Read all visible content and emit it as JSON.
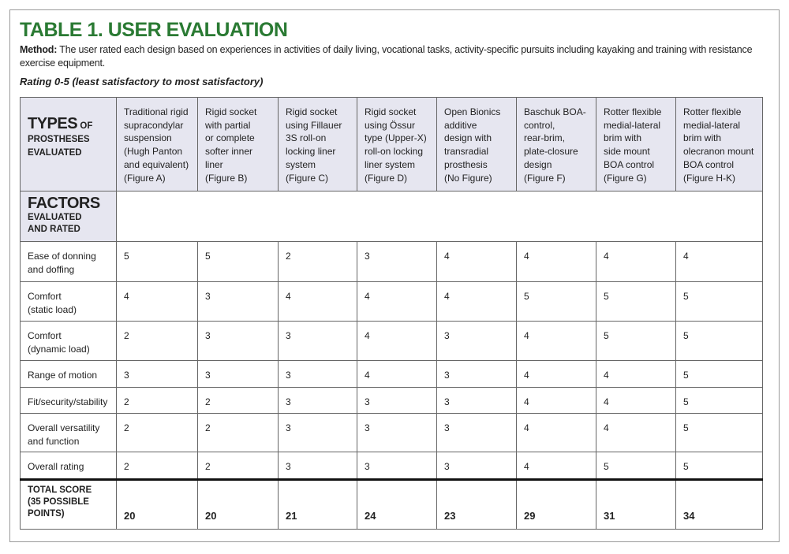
{
  "title": "TABLE 1. USER EVALUATION",
  "method": {
    "label": "Method:",
    "text": "The user rated each design based on experiences in activities of daily living, vocational tasks, activity-specific pursuits including kayaking and training with resistance exercise equipment."
  },
  "rating_note": "Rating 0-5 (least satisfactory to most satisfactory)",
  "table": {
    "corner": {
      "lead": "TYPES",
      "rest": "OF PROSTHESES EVALUATED"
    },
    "factors_heading": {
      "lead": "FACTORS",
      "rest": "EVALUATED AND RATED"
    },
    "columns": [
      [
        "Traditional rigid",
        "supracondylar",
        "suspension",
        "(Hugh Panton",
        "and equivalent)",
        "(Figure A)"
      ],
      [
        "Rigid socket",
        "with partial",
        "or complete",
        "softer inner",
        "liner",
        "(Figure B)"
      ],
      [
        "Rigid socket",
        "using Fillauer",
        "3S roll-on",
        "locking liner",
        "system",
        "(Figure C)"
      ],
      [
        "Rigid socket",
        "using Össur",
        "type (Upper-X)",
        "roll-on locking",
        "liner system",
        "(Figure D)"
      ],
      [
        "Open Bionics",
        "additive",
        "design with",
        "transradial",
        "prosthesis",
        "(No Figure)"
      ],
      [
        "Baschuk BOA-",
        "control,",
        "rear-brim,",
        "plate-closure",
        "design",
        "(Figure F)"
      ],
      [
        "Rotter flexible",
        "medial-lateral",
        "brim with",
        "side mount",
        "BOA control",
        "(Figure G)"
      ],
      [
        "Rotter flexible",
        "medial-lateral",
        "brim with",
        "olecranon mount",
        "BOA control",
        "(Figure H-K)"
      ]
    ],
    "rows": [
      {
        "factor": [
          "Ease of donning",
          "and doffing"
        ],
        "ratings": [
          5,
          5,
          2,
          3,
          4,
          4,
          4,
          4
        ]
      },
      {
        "factor": [
          "Comfort",
          "(static load)"
        ],
        "ratings": [
          4,
          3,
          4,
          4,
          4,
          5,
          5,
          5
        ]
      },
      {
        "factor": [
          "Comfort",
          "(dynamic load)"
        ],
        "ratings": [
          2,
          3,
          3,
          4,
          3,
          4,
          5,
          5
        ]
      },
      {
        "factor": [
          "Range of motion"
        ],
        "ratings": [
          3,
          3,
          3,
          4,
          3,
          4,
          4,
          5
        ]
      },
      {
        "factor": [
          "Fit/security/stability"
        ],
        "ratings": [
          2,
          2,
          3,
          3,
          3,
          4,
          4,
          5
        ]
      },
      {
        "factor": [
          "Overall versatility",
          "and function"
        ],
        "ratings": [
          2,
          2,
          3,
          3,
          3,
          4,
          4,
          5
        ]
      },
      {
        "factor": [
          "Overall rating"
        ],
        "ratings": [
          2,
          2,
          3,
          3,
          3,
          4,
          5,
          5
        ]
      }
    ],
    "total": {
      "label": [
        "TOTAL SCORE",
        "(35 POSSIBLE",
        "POINTS)"
      ],
      "scores": [
        20,
        20,
        21,
        24,
        23,
        29,
        31,
        34
      ]
    }
  }
}
